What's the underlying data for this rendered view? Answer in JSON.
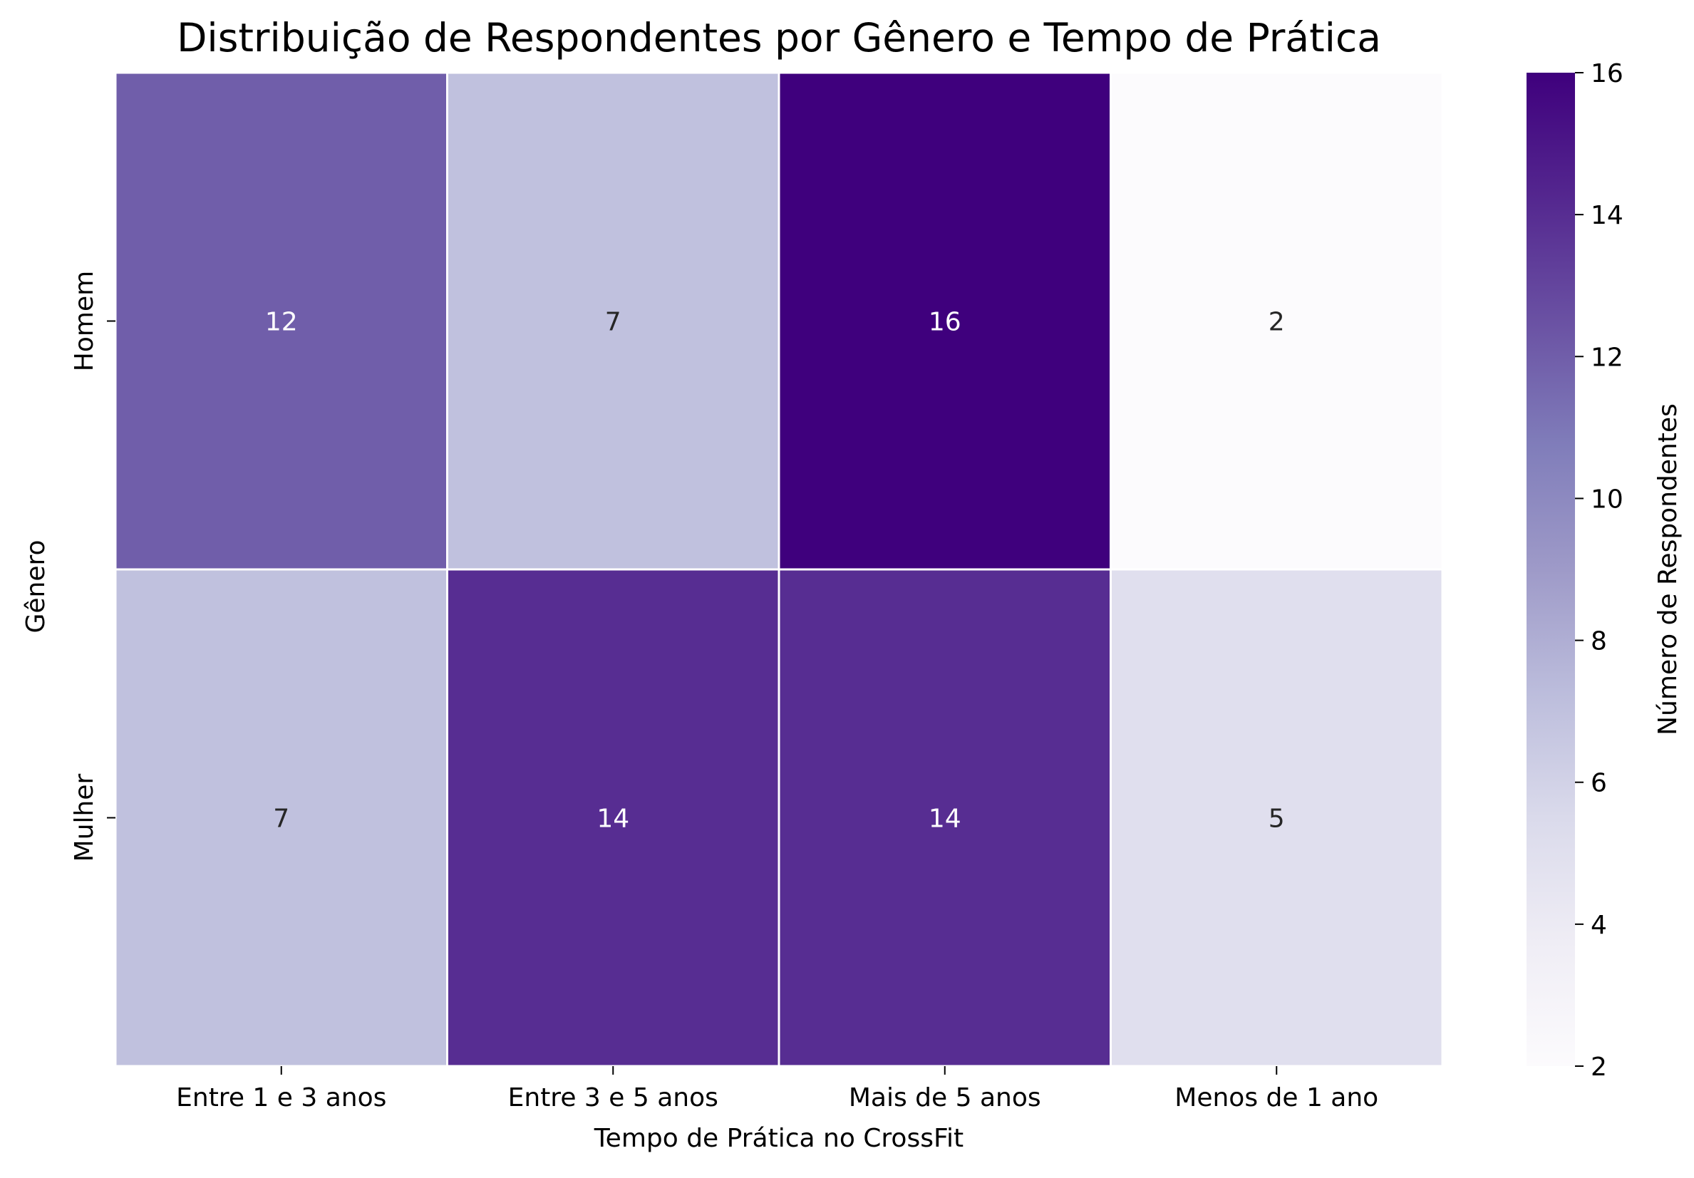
{
  "chart_data": {
    "type": "heatmap",
    "title": "Distribuição de Respondentes por Gênero e Tempo de Prática",
    "xlabel": "Tempo de Prática no CrossFit",
    "ylabel": "Gênero",
    "x_categories": [
      "Entre 1 e 3 anos",
      "Entre 3 e 5 anos",
      "Mais de 5 anos",
      "Menos de 1 ano"
    ],
    "y_categories": [
      "Homem",
      "Mulher"
    ],
    "values": [
      [
        12,
        7,
        16,
        2
      ],
      [
        7,
        14,
        14,
        5
      ]
    ],
    "colorbar": {
      "label": "Número de Respondentes",
      "min": 2,
      "max": 16,
      "ticks": [
        2,
        4,
        6,
        8,
        10,
        12,
        14,
        16
      ],
      "colormap": "Purples"
    },
    "annotations": true,
    "grid": false
  }
}
